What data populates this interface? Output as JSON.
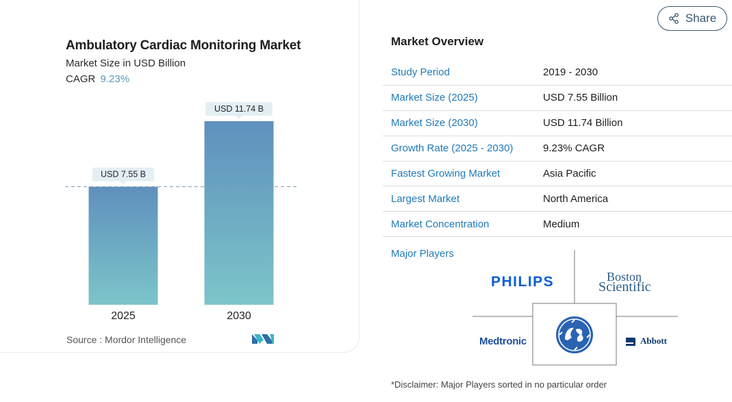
{
  "chart_data": {
    "type": "bar",
    "title": "Ambulatory Cardiac Monitoring Market",
    "subtitle": "Market Size in USD Billion",
    "cagr_label": "CAGR",
    "cagr_value": "9.23%",
    "categories": [
      "2025",
      "2030"
    ],
    "values": [
      7.55,
      11.74
    ],
    "data_labels": [
      "USD 7.55 B",
      "USD 11.74 B"
    ],
    "ylim": [
      0,
      11.74
    ],
    "grid": false,
    "reference_line": 7.55,
    "source": "Source :  Mordor Intelligence",
    "colors": {
      "bar_top": "#5f90bd",
      "bar_bottom": "#7cc5c9",
      "label_bg": "#e4eff4",
      "ref_line": "#7a9bb8"
    }
  },
  "share": {
    "label": "Share",
    "icon": "share-icon"
  },
  "overview": {
    "title": "Market Overview",
    "rows": [
      {
        "label": "Study Period",
        "value": "2019 - 2030"
      },
      {
        "label": "Market Size (2025)",
        "value": "USD 7.55 Billion"
      },
      {
        "label": "Market Size (2030)",
        "value": "USD 11.74 Billion"
      },
      {
        "label": "Growth Rate (2025 - 2030)",
        "value": "9.23% CAGR"
      },
      {
        "label": "Fastest Growing Market",
        "value": "Asia Pacific"
      },
      {
        "label": "Largest Market",
        "value": "North America"
      },
      {
        "label": "Market Concentration",
        "value": "Medium"
      }
    ]
  },
  "players": {
    "label": "Major Players",
    "philips": "PHILIPS",
    "boston_line1": "Boston",
    "boston_line2": "Scientific",
    "medtronic": "Medtronic",
    "abbott": "Abbott"
  },
  "disclaimer": "*Disclaimer: Major Players sorted in no particular order",
  "colors": {
    "accent": "#1f79b7",
    "share_border": "#35566b"
  }
}
